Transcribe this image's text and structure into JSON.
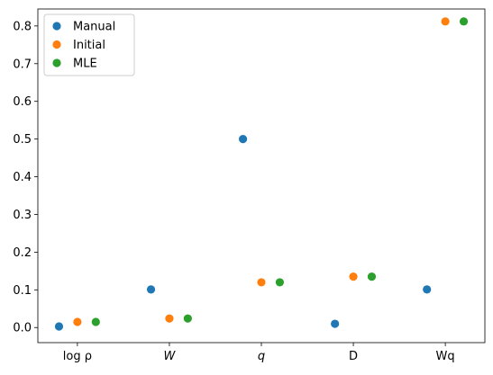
{
  "chart_data": {
    "type": "scatter",
    "title": "",
    "xlabel": "",
    "ylabel": "",
    "categories": [
      "log ρ",
      "W",
      "q",
      "D",
      "Wq"
    ],
    "ylim": [
      -0.04,
      0.845
    ],
    "yticks": [
      0.0,
      0.1,
      0.2,
      0.3,
      0.4,
      0.5,
      0.6,
      0.7,
      0.8
    ],
    "grid": false,
    "legend_position": "top-left",
    "series": [
      {
        "name": "Manual",
        "color": "#1f77b4",
        "offset": -0.2,
        "values": [
          0.003,
          0.101,
          0.5,
          0.01,
          0.101
        ]
      },
      {
        "name": "Initial",
        "color": "#ff7f0e",
        "offset": 0.0,
        "values": [
          0.015,
          0.024,
          0.12,
          0.135,
          0.812
        ]
      },
      {
        "name": "MLE",
        "color": "#2ca02c",
        "offset": 0.2,
        "values": [
          0.015,
          0.024,
          0.12,
          0.135,
          0.812
        ]
      }
    ]
  }
}
